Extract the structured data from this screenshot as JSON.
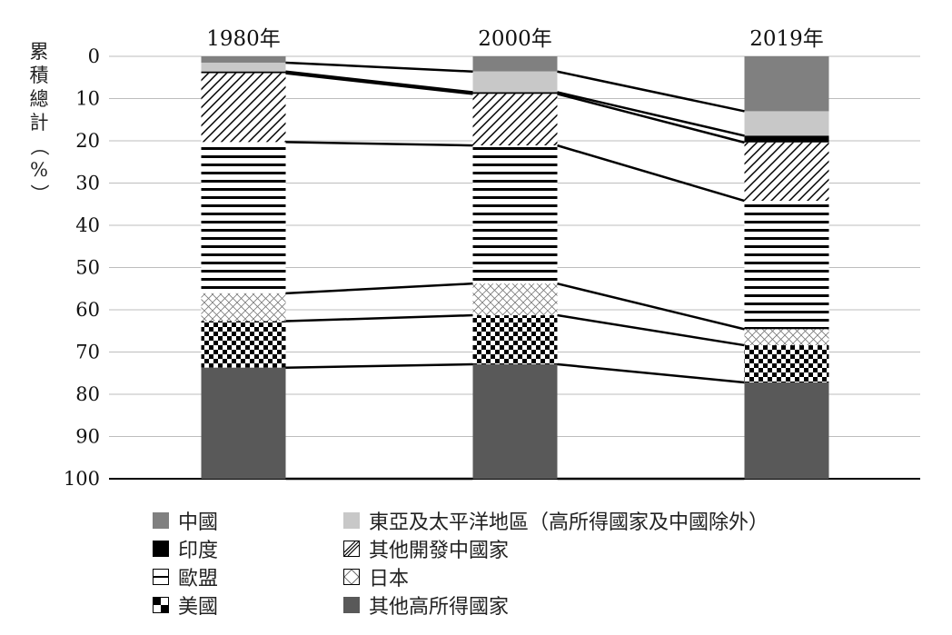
{
  "chart_data": {
    "type": "bar",
    "stacked": true,
    "ylabel": "累積總計（%）",
    "ylim": [
      0,
      100
    ],
    "y_ticks": [
      "0",
      "10",
      "20",
      "30",
      "40",
      "50",
      "60",
      "70",
      "80",
      "90",
      "100"
    ],
    "y_axis_inverted": true,
    "grid": true,
    "legend_position": "bottom",
    "categories": [
      "1980年",
      "2000年",
      "2019年"
    ],
    "series": [
      {
        "name": "中國",
        "values": [
          1.5,
          3.6,
          13.0
        ],
        "color": "#808080",
        "pattern": "solid"
      },
      {
        "name": "東亞及太平洋地區（高所得國家及中國除外）",
        "values": [
          2.1,
          4.9,
          5.8
        ],
        "color": "#c8c8c8",
        "pattern": "solid"
      },
      {
        "name": "印度",
        "values": [
          0.4,
          0.4,
          1.6
        ],
        "color": "#000000",
        "pattern": "solid"
      },
      {
        "name": "其他開發中國家",
        "values": [
          16.3,
          12.2,
          13.8
        ],
        "color": "#ffffff",
        "pattern": "diagonal"
      },
      {
        "name": "歐盟",
        "values": [
          35.8,
          32.7,
          30.4
        ],
        "color": "#ffffff",
        "pattern": "horizontal"
      },
      {
        "name": "日本",
        "values": [
          6.6,
          7.5,
          3.8
        ],
        "color": "#ffffff",
        "pattern": "crosshatch"
      },
      {
        "name": "美國",
        "values": [
          11.0,
          11.6,
          8.8
        ],
        "color": "#000000",
        "pattern": "checker"
      },
      {
        "name": "其他高所得國家",
        "values": [
          26.3,
          27.1,
          22.8
        ],
        "color": "#595959",
        "pattern": "solid"
      }
    ]
  }
}
